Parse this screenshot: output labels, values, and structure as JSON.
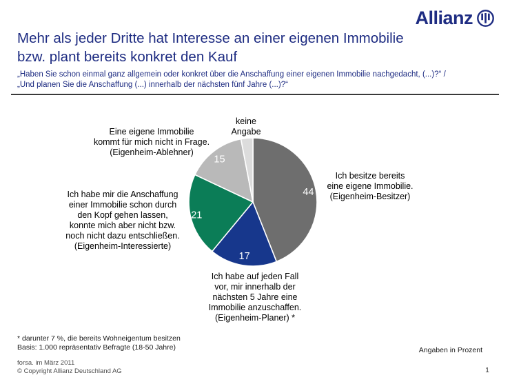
{
  "header": {
    "logo_text": "Allianz",
    "title": "Mehr als jeder Dritte hat Interesse an einer eigenen Immobilie\nbzw. plant bereits konkret den Kauf",
    "subtitle": "„Haben Sie schon einmal ganz allgemein oder konkret über die Anschaffung einer eigenen Immobilie nachgedacht, (...)?“ /\n„Und planen Sie die Anschaffung (...) innerhalb der nächsten fünf Jahre (...)?“"
  },
  "colors": {
    "brand_blue": "#1e2c82",
    "rule_gray": "#3a3a3a",
    "slice_gray": "#6e6e6e",
    "slice_blue": "#17378c",
    "slice_green": "#0b7d57",
    "slice_lightgray": "#b9b9b9",
    "slice_palegray": "#dcdcdc"
  },
  "chart": {
    "callouts": {
      "keine_angabe": "keine\nAngabe",
      "ablehner": "Eine eigene Immobilie\nkommt für mich nicht in Frage.\n(Eigenheim-Ablehner)",
      "besitzer": "Ich besitze bereits\neine eigene Immobilie.\n(Eigenheim-Besitzer)",
      "interessierte": "Ich habe mir die Anschaffung\neiner Immobilie schon durch\nden Kopf gehen lassen,\nkonnte mich aber nicht bzw.\nnoch nicht dazu entschließen.\n(Eigenheim-Interessierte)",
      "planer": "Ich habe auf jeden Fall\nvor, mir innerhalb der\nnächsten 5 Jahre eine\nImmobilie anzuschaffen.\n(Eigenheim-Planer) *"
    }
  },
  "chart_data": {
    "type": "pie",
    "title": "Interesse an einer eigenen Immobilie",
    "unit": "Prozent",
    "start_angle_deg": 0,
    "clockwise": true,
    "legend_position": "callouts-around-pie",
    "slices": [
      {
        "label": "Ich besitze bereits eine eigene Immobilie. (Eigenheim-Besitzer)",
        "value": 44,
        "color": "#6e6e6e",
        "label_r": 0.88,
        "show_value": true
      },
      {
        "label": "Ich habe auf jeden Fall vor, mir innerhalb der nächsten 5 Jahre eine Immobilie anzuschaffen. (Eigenheim-Planer) *",
        "value": 17,
        "color": "#17378c",
        "label_r": 0.85,
        "show_value": true
      },
      {
        "label": "Ich habe mir die Anschaffung einer Immobilie schon durch den Kopf gehen lassen, konnte mich aber nicht bzw. noch nicht dazu entschließen. (Eigenheim-Interessierte)",
        "value": 21,
        "color": "#0b7d57",
        "label_r": 0.9,
        "show_value": true
      },
      {
        "label": "Eine eigene Immobilie kommt für mich nicht in Frage. (Eigenheim-Ablehner)",
        "value": 15,
        "color": "#b9b9b9",
        "label_r": 0.85,
        "show_value": true
      },
      {
        "label": "keine Angabe",
        "value": 3,
        "color": "#dcdcdc",
        "label_r": 0.85,
        "show_value": false
      }
    ]
  },
  "footer": {
    "footnotes": "* darunter 7 %, die bereits Wohneigentum besitzen\nBasis: 1.000 repräsentativ Befragte (18-50 Jahre)",
    "source": "forsa. im März 2011\n© Copyright Allianz Deutschland AG",
    "unit_note": "Angaben in Prozent",
    "page_number": "1"
  }
}
